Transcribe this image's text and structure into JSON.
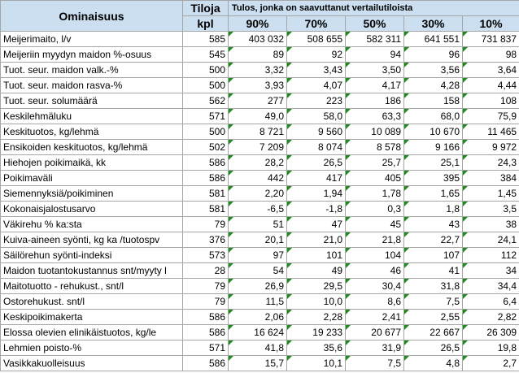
{
  "header": {
    "col_name": "Ominaisuus",
    "col_count": "Tiloja",
    "col_count_unit": "kpl",
    "group_title": "Tulos, jonka on saavuttanut vertailutiloista",
    "percentiles": [
      "90%",
      "70%",
      "50%",
      "30%",
      "10%"
    ]
  },
  "rows": [
    {
      "name": "Meijerimaito, l/v",
      "count": "585",
      "values": [
        "403 032",
        "508 655",
        "582 311",
        "641 551",
        "731 837"
      ]
    },
    {
      "name": "Meijeriin myydyn maidon %-osuus",
      "count": "545",
      "values": [
        "89",
        "92",
        "94",
        "96",
        "98"
      ]
    },
    {
      "name": "Tuot. seur. maidon valk.-%",
      "count": "500",
      "values": [
        "3,32",
        "3,43",
        "3,50",
        "3,56",
        "3,64"
      ]
    },
    {
      "name": "Tuot. seur. maidon rasva-%",
      "count": "500",
      "values": [
        "3,93",
        "4,07",
        "4,17",
        "4,28",
        "4,44"
      ]
    },
    {
      "name": "Tuot. seur. solumäärä",
      "count": "562",
      "values": [
        "277",
        "223",
        "186",
        "158",
        "108"
      ]
    },
    {
      "name": "Keskilehmäluku",
      "count": "571",
      "values": [
        "49,0",
        "58,0",
        "63,3",
        "68,0",
        "75,9"
      ]
    },
    {
      "name": "Keskituotos, kg/lehmä",
      "count": "500",
      "values": [
        "8 721",
        "9 560",
        "10 089",
        "10 670",
        "11 465"
      ]
    },
    {
      "name": "Ensikoiden keskituotos, kg/lehmä",
      "count": "502",
      "values": [
        "7 209",
        "8 074",
        "8 578",
        "9 166",
        "9 972"
      ]
    },
    {
      "name": "Hiehojen poikimaikä, kk",
      "count": "586",
      "values": [
        "28,2",
        "26,5",
        "25,7",
        "25,1",
        "24,3"
      ]
    },
    {
      "name": "Poikimaväli",
      "count": "586",
      "values": [
        "442",
        "417",
        "405",
        "395",
        "384"
      ]
    },
    {
      "name": "Siemennyksiä/poikiminen",
      "count": "581",
      "values": [
        "2,20",
        "1,94",
        "1,78",
        "1,65",
        "1,45"
      ]
    },
    {
      "name": "Kokonaisjalostusarvo",
      "count": "581",
      "values": [
        "-6,5",
        "-1,8",
        "0,3",
        "1,8",
        "3,5"
      ]
    },
    {
      "name": "Väkirehu % ka:sta",
      "count": "79",
      "values": [
        "51",
        "47",
        "45",
        "43",
        "38"
      ]
    },
    {
      "name": "Kuiva-aineen syönti, kg ka /tuotospv",
      "count": "376",
      "values": [
        "20,1",
        "21,0",
        "21,8",
        "22,7",
        "24,1"
      ]
    },
    {
      "name": "Säilörehun syönti-indeksi",
      "count": "573",
      "values": [
        "97",
        "101",
        "104",
        "107",
        "112"
      ]
    },
    {
      "name": "Maidon tuotantokustannus snt/myyty l",
      "count": "28",
      "values": [
        "54",
        "49",
        "46",
        "41",
        "34"
      ]
    },
    {
      "name": "Maitotuotto - rehukust., snt/l",
      "count": "79",
      "values": [
        "26,9",
        "29,5",
        "30,4",
        "31,8",
        "34,4"
      ]
    },
    {
      "name": "Ostorehukust. snt/l",
      "count": "79",
      "values": [
        "11,5",
        "10,0",
        "8,6",
        "7,5",
        "6,4"
      ]
    },
    {
      "name": "Keskipoikimakerta",
      "count": "586",
      "values": [
        "2,06",
        "2,28",
        "2,41",
        "2,55",
        "2,82"
      ]
    },
    {
      "name": "Elossa olevien elinikäistuotos, kg/le",
      "count": "586",
      "values": [
        "16 624",
        "19 233",
        "20 677",
        "22 667",
        "26 309"
      ]
    },
    {
      "name": "Lehmien poisto-%",
      "count": "571",
      "values": [
        "41,8",
        "35,6",
        "31,9",
        "26,5",
        "19,8"
      ]
    },
    {
      "name": "Vasikkakuolleisuus",
      "count": "586",
      "values": [
        "15,7",
        "10,1",
        "7,5",
        "4,8",
        "2,7"
      ]
    }
  ]
}
